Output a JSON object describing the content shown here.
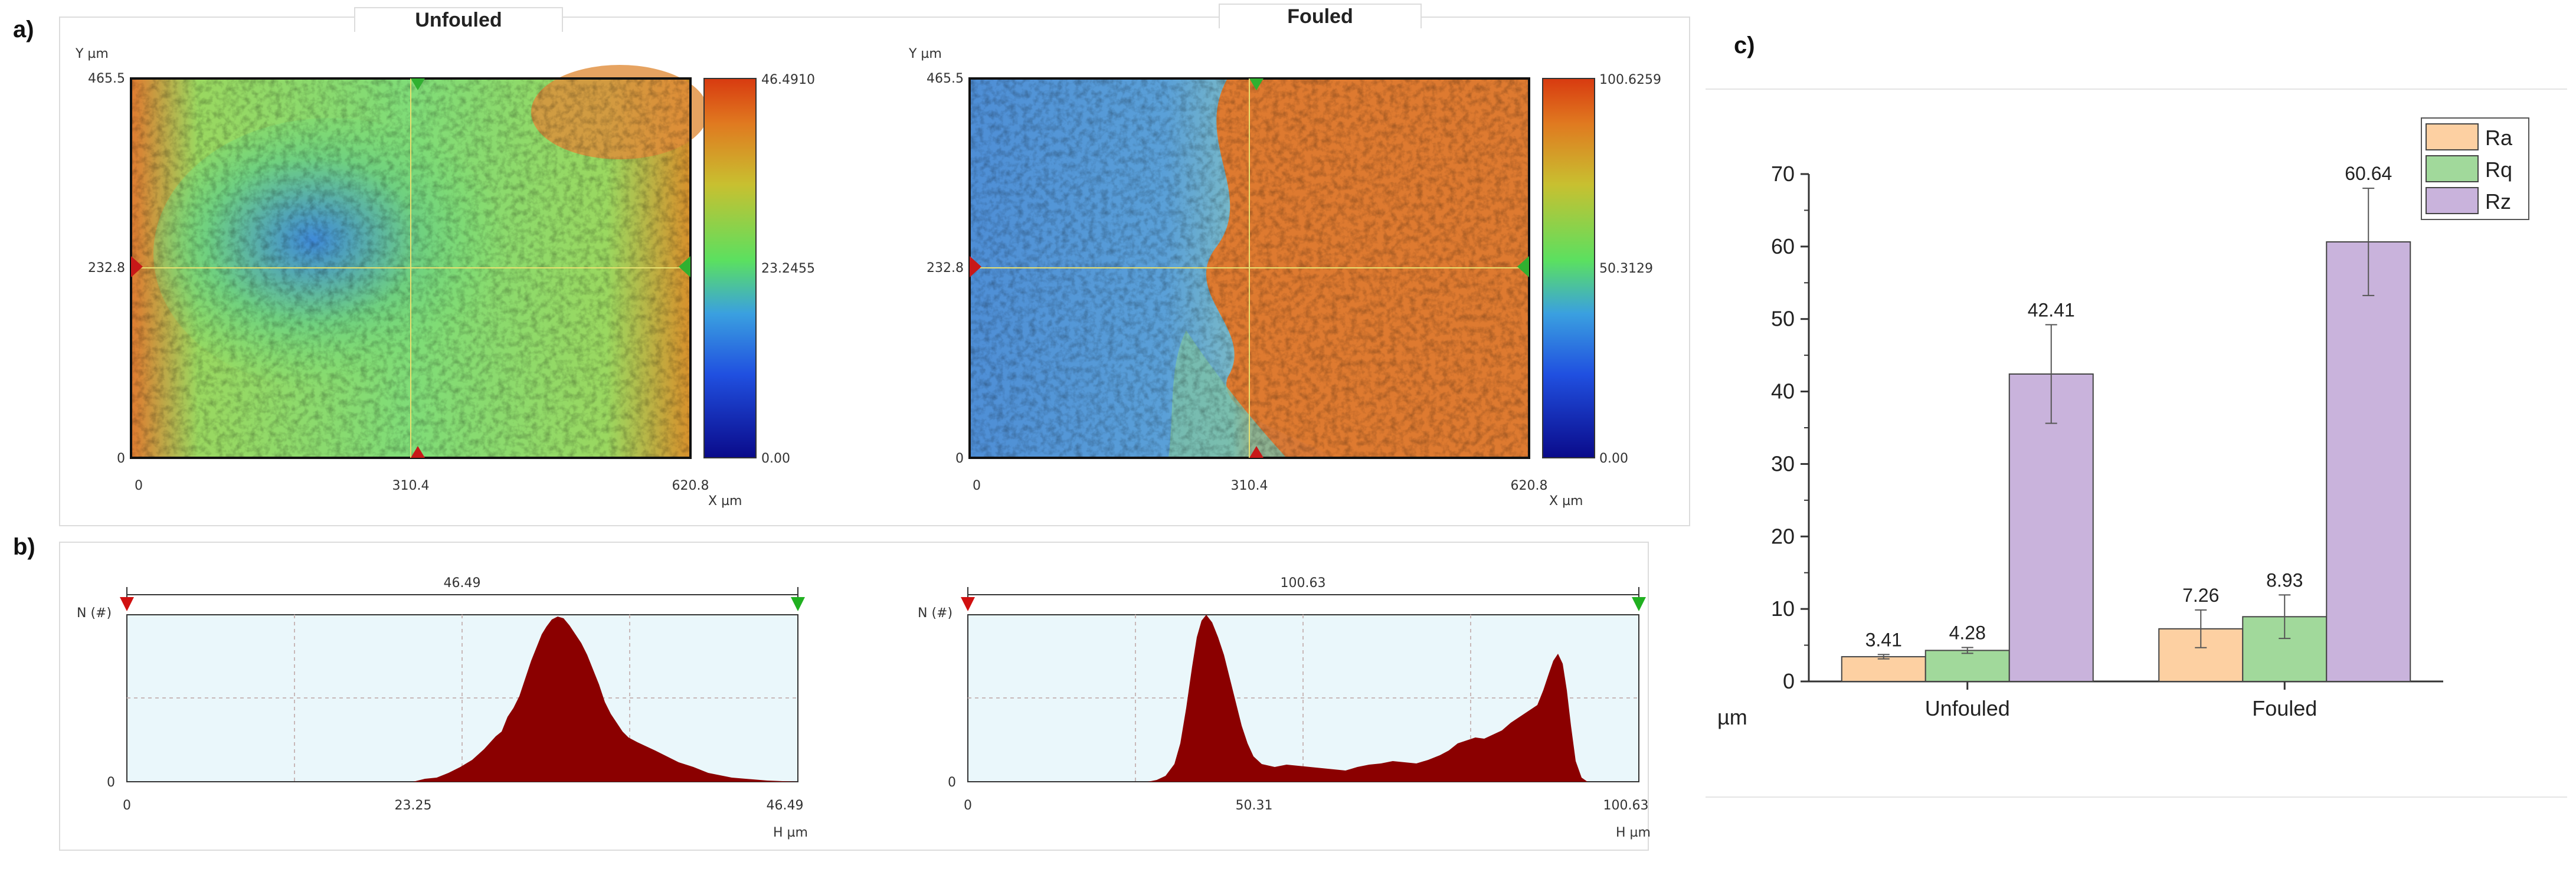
{
  "panels": {
    "a": "a)",
    "b": "b)",
    "c": "c)"
  },
  "maps": [
    {
      "title": "Unfouled",
      "y_axis_unit": "Y µm",
      "x_axis_unit": "X µm",
      "y_ticks": [
        "465.5",
        "232.8",
        "0"
      ],
      "x_ticks": [
        "0",
        "310.4",
        "620.8"
      ],
      "colorbar_ticks": [
        "46.4910",
        "23.2455",
        "0.00"
      ],
      "colorbar_max": 46.491
    },
    {
      "title": "Fouled",
      "y_axis_unit": "Y µm",
      "x_axis_unit": "X µm",
      "y_ticks": [
        "465.5",
        "232.8",
        "0"
      ],
      "x_ticks": [
        "0",
        "310.4",
        "620.8"
      ],
      "colorbar_ticks": [
        "100.6259",
        "50.3129",
        "0.00"
      ],
      "colorbar_max": 100.6259
    }
  ],
  "histograms": [
    {
      "range_label": "46.49",
      "y_label": "N (#)",
      "x_unit": "H µm",
      "x_ticks": [
        "0",
        "23.25",
        "46.49"
      ],
      "y_ticks": [
        "0"
      ]
    },
    {
      "range_label": "100.63",
      "y_label": "N (#)",
      "x_unit": "H µm",
      "x_ticks": [
        "0",
        "50.31",
        "100.63"
      ],
      "y_ticks": [
        "0"
      ]
    }
  ],
  "colors": {
    "histogram_fill": "#8b0000",
    "histogram_bg": "#eaf7fb",
    "marker_red": "#d01010",
    "marker_green": "#20b020",
    "Ra": "#fdd0a2",
    "Rq": "#a1d99b",
    "Rz": "#c9b3dc"
  },
  "chart_data": {
    "type": "bar",
    "title": "",
    "categories": [
      "Unfouled",
      "Fouled"
    ],
    "series": [
      {
        "name": "Ra",
        "values": [
          3.41,
          7.26
        ],
        "errors": [
          0.3,
          2.6
        ]
      },
      {
        "name": "Rq",
        "values": [
          4.28,
          8.93
        ],
        "errors": [
          0.4,
          3.0
        ]
      },
      {
        "name": "Rz",
        "values": [
          42.41,
          60.64
        ],
        "errors": [
          6.8,
          7.4
        ]
      }
    ],
    "value_labels": [
      [
        "3.41",
        "7.26"
      ],
      [
        "4.28",
        "8.93"
      ],
      [
        "42.41",
        "60.64"
      ]
    ],
    "ylabel": "µm",
    "xlabel": "",
    "ylim": [
      0,
      70
    ],
    "y_ticks": [
      "0",
      "10",
      "20",
      "30",
      "40",
      "50",
      "60",
      "70"
    ],
    "legend_position": "top-right",
    "grid": false
  }
}
